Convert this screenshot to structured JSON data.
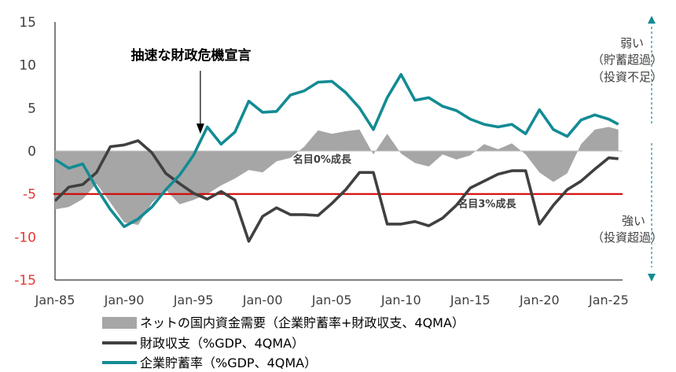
{
  "chart_data": {
    "type": "line",
    "title": "",
    "xlabel": "",
    "ylabel": "",
    "ylim": [
      -15,
      15
    ],
    "y_ticks": [
      "15",
      "10",
      "5",
      "0",
      "-5",
      "-10",
      "-15"
    ],
    "x_ticks": [
      {
        "label": "Jan-85",
        "year": 1985
      },
      {
        "label": "Jan-90",
        "year": 1990
      },
      {
        "label": "Jan-95",
        "year": 1995
      },
      {
        "label": "Jan-00",
        "year": 2000
      },
      {
        "label": "Jan-05",
        "year": 2005
      },
      {
        "label": "Jan-10",
        "year": 2010
      },
      {
        "label": "Jan-15",
        "year": 2015
      },
      {
        "label": "Jan-20",
        "year": 2020
      },
      {
        "label": "Jan-25",
        "year": 2025
      }
    ],
    "xlim": [
      1985,
      2026
    ],
    "grid": false,
    "legend_position": "bottom",
    "reference_line": {
      "y": -5,
      "color": "#d40000"
    },
    "colors": {
      "area": "#a6a6a6",
      "fiscal": "#404040",
      "corporate": "#138b94",
      "negative_tick": "#e53935"
    },
    "series": [
      {
        "name": "ネットの国内資金需要（企業貯蓄率+財政収支、4QMA）",
        "kind": "area",
        "points": [
          [
            1985,
            -6.8
          ],
          [
            1986,
            -6.5
          ],
          [
            1987,
            -5.6
          ],
          [
            1988,
            -3.8
          ],
          [
            1989,
            -6.0
          ],
          [
            1990,
            -8.3
          ],
          [
            1991,
            -8.6
          ],
          [
            1992,
            -6.0
          ],
          [
            1993,
            -4.5
          ],
          [
            1994,
            -6.2
          ],
          [
            1995,
            -5.7
          ],
          [
            1996,
            -5.0
          ],
          [
            1997,
            -4.0
          ],
          [
            1998,
            -3.2
          ],
          [
            1999,
            -2.2
          ],
          [
            2000,
            -2.5
          ],
          [
            2001,
            -1.2
          ],
          [
            2002,
            -0.8
          ],
          [
            2003,
            0.5
          ],
          [
            2004,
            2.4
          ],
          [
            2005,
            2.0
          ],
          [
            2006,
            2.3
          ],
          [
            2007,
            2.5
          ],
          [
            2008,
            -0.4
          ],
          [
            2009,
            2.0
          ],
          [
            2010,
            -0.3
          ],
          [
            2011,
            -1.4
          ],
          [
            2012,
            -1.8
          ],
          [
            2013,
            -0.4
          ],
          [
            2014,
            -1.0
          ],
          [
            2015,
            -0.5
          ],
          [
            2016,
            0.8
          ],
          [
            2017,
            0.2
          ],
          [
            2018,
            0.9
          ],
          [
            2019,
            -0.4
          ],
          [
            2020,
            -2.5
          ],
          [
            2021,
            -3.6
          ],
          [
            2022,
            -2.6
          ],
          [
            2023,
            0.8
          ],
          [
            2024,
            2.5
          ],
          [
            2025,
            2.8
          ],
          [
            2025.7,
            2.5
          ]
        ]
      },
      {
        "name": "財政収支（%GDP、4QMA）",
        "kind": "line",
        "points": [
          [
            1985,
            -5.8
          ],
          [
            1986,
            -4.2
          ],
          [
            1987,
            -3.9
          ],
          [
            1988,
            -2.5
          ],
          [
            1989,
            0.5
          ],
          [
            1990,
            0.7
          ],
          [
            1991,
            1.2
          ],
          [
            1992,
            -0.2
          ],
          [
            1993,
            -2.6
          ],
          [
            1994,
            -3.8
          ],
          [
            1995,
            -4.9
          ],
          [
            1996,
            -5.6
          ],
          [
            1997,
            -4.7
          ],
          [
            1998,
            -5.7
          ],
          [
            1999,
            -10.5
          ],
          [
            2000,
            -7.6
          ],
          [
            2001,
            -6.6
          ],
          [
            2002,
            -7.4
          ],
          [
            2003,
            -7.4
          ],
          [
            2004,
            -7.5
          ],
          [
            2005,
            -6.1
          ],
          [
            2006,
            -4.5
          ],
          [
            2007,
            -2.5
          ],
          [
            2008,
            -2.5
          ],
          [
            2009,
            -8.5
          ],
          [
            2010,
            -8.5
          ],
          [
            2011,
            -8.2
          ],
          [
            2012,
            -8.7
          ],
          [
            2013,
            -7.8
          ],
          [
            2014,
            -6.3
          ],
          [
            2015,
            -4.3
          ],
          [
            2016,
            -3.5
          ],
          [
            2017,
            -2.7
          ],
          [
            2018,
            -2.3
          ],
          [
            2019,
            -2.3
          ],
          [
            2020,
            -8.5
          ],
          [
            2021,
            -6.3
          ],
          [
            2022,
            -4.5
          ],
          [
            2023,
            -3.5
          ],
          [
            2024,
            -2.1
          ],
          [
            2025,
            -0.8
          ],
          [
            2025.7,
            -0.9
          ]
        ]
      },
      {
        "name": "企業貯蓄率（%GDP、4QMA）",
        "kind": "line",
        "points": [
          [
            1985,
            -1.0
          ],
          [
            1986,
            -2.0
          ],
          [
            1987,
            -1.5
          ],
          [
            1988,
            -4.3
          ],
          [
            1989,
            -6.8
          ],
          [
            1990,
            -8.8
          ],
          [
            1991,
            -7.9
          ],
          [
            1992,
            -6.5
          ],
          [
            1993,
            -4.5
          ],
          [
            1994,
            -2.8
          ],
          [
            1995,
            -0.5
          ],
          [
            1996,
            2.8
          ],
          [
            1997,
            0.8
          ],
          [
            1998,
            2.2
          ],
          [
            1999,
            5.8
          ],
          [
            2000,
            4.5
          ],
          [
            2001,
            4.6
          ],
          [
            2002,
            6.5
          ],
          [
            2003,
            7.0
          ],
          [
            2004,
            8.0
          ],
          [
            2005,
            8.1
          ],
          [
            2006,
            6.8
          ],
          [
            2007,
            5.0
          ],
          [
            2008,
            2.5
          ],
          [
            2009,
            6.2
          ],
          [
            2010,
            8.9
          ],
          [
            2011,
            5.9
          ],
          [
            2012,
            6.2
          ],
          [
            2013,
            5.2
          ],
          [
            2014,
            4.7
          ],
          [
            2015,
            3.7
          ],
          [
            2016,
            3.1
          ],
          [
            2017,
            2.8
          ],
          [
            2018,
            3.1
          ],
          [
            2019,
            2.0
          ],
          [
            2020,
            4.8
          ],
          [
            2021,
            2.5
          ],
          [
            2022,
            1.7
          ],
          [
            2023,
            3.6
          ],
          [
            2024,
            4.2
          ],
          [
            2025,
            3.7
          ],
          [
            2025.7,
            3.1
          ]
        ]
      }
    ],
    "annotations": [
      {
        "text": "抽速な財政危機宣言",
        "x": 1995.5,
        "arrow_to_y": 2.0
      },
      {
        "text": "名目0%成長",
        "x": 2004.3,
        "y": -0.9
      },
      {
        "text": "名目3%成長",
        "x": 2016.2,
        "y": -6.1
      }
    ],
    "side_labels": {
      "top": [
        "弱い",
        "（貯蓄超過）",
        "（投資不足）"
      ],
      "bottom": [
        "強い",
        "（投資超過）"
      ]
    }
  }
}
